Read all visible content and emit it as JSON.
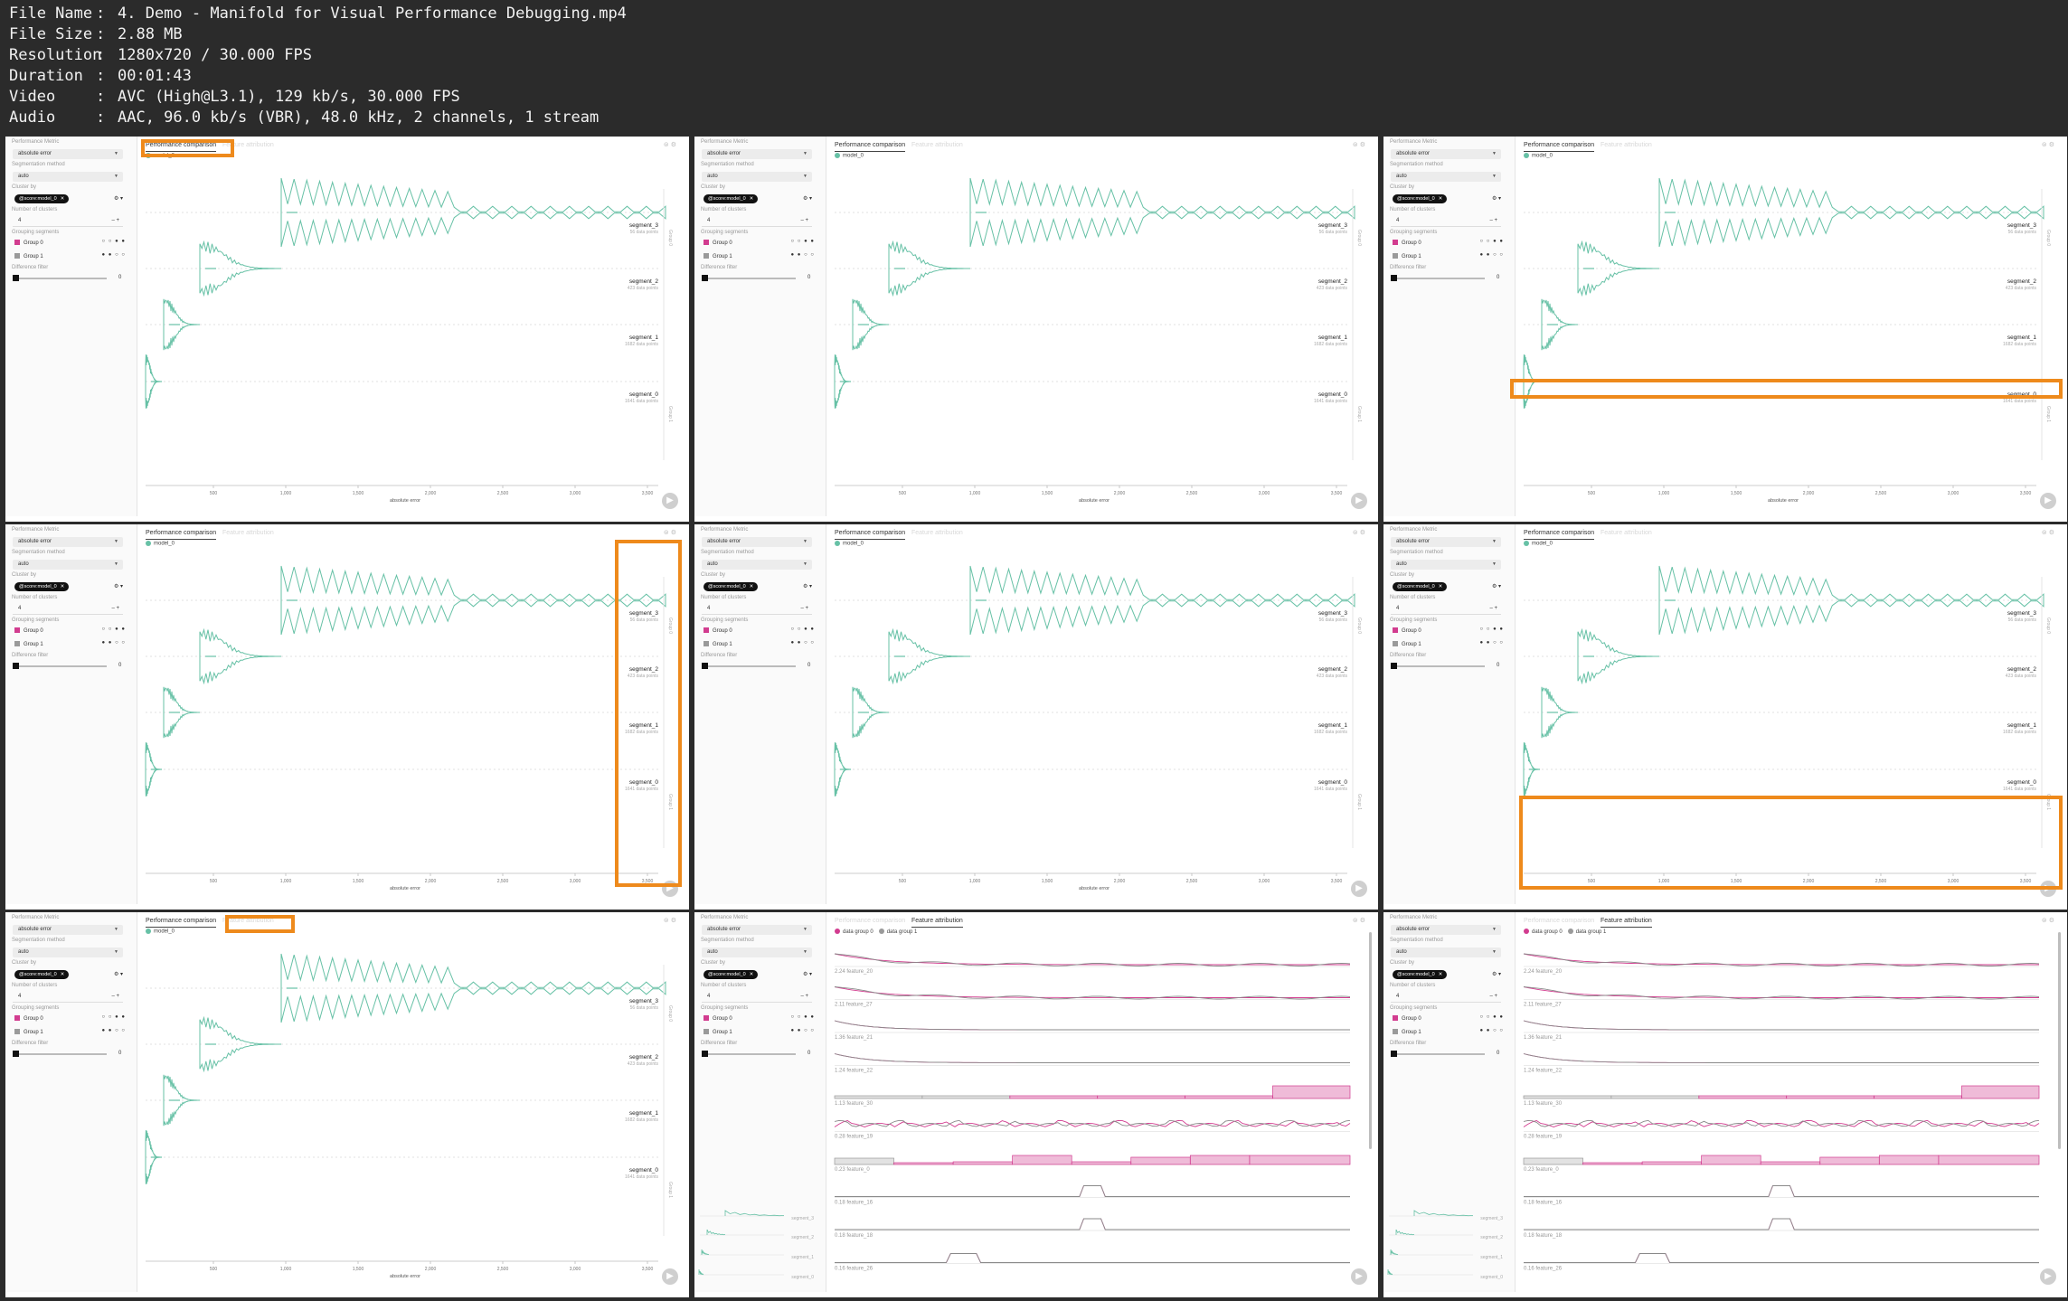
{
  "header": {
    "rows": [
      {
        "key": "File Name",
        "sep": ":",
        "value": "4. Demo - Manifold for Visual Performance Debugging.mp4"
      },
      {
        "key": "File Size",
        "sep": ":",
        "value": "2.88 MB"
      },
      {
        "key": "Resolution",
        "sep": ":",
        "value": "1280x720 / 30.000 FPS"
      },
      {
        "key": "Duration",
        "sep": ":",
        "value": "00:01:43"
      },
      {
        "key": "Video",
        "sep": ":",
        "value": "AVC (High@L3.1), 129 kb/s, 30.000 FPS"
      },
      {
        "key": "Audio",
        "sep": ":",
        "value": "AAC, 96.0 kb/s (VBR), 48.0 kHz, 2 channels, 1 stream"
      }
    ]
  },
  "sidebar": {
    "performance_metric_label": "Performance Metric",
    "performance_metric_value": "absolute error",
    "segmentation_method_label": "Segmentation method",
    "segmentation_method_value": "auto",
    "cluster_by_label": "Cluster by",
    "cluster_by_chip": "@score:model_0",
    "num_clusters_label": "Number of clusters",
    "num_clusters_value": "4",
    "grouping_segments_label": "Grouping segments",
    "group0_label": "Group 0",
    "group1_label": "Group 1",
    "difference_filter_label": "Difference filter",
    "difference_filter_value": "0"
  },
  "tabs": {
    "performance": "Performance comparison",
    "feature": "Feature attribution"
  },
  "perf_view": {
    "legend": "model_0",
    "segments": [
      {
        "name": "segment_3",
        "sub": "56 data points"
      },
      {
        "name": "segment_2",
        "sub": "423 data points"
      },
      {
        "name": "segment_1",
        "sub": "1682 data points"
      },
      {
        "name": "segment_0",
        "sub": "1641 data points"
      }
    ],
    "x_ticks": [
      "500",
      "1,000",
      "1,500",
      "2,000",
      "2,500",
      "3,000",
      "3,500"
    ],
    "x_label": "absolute error",
    "group_marks": [
      "Group 0",
      "Group 1"
    ]
  },
  "feature_view": {
    "legend": [
      "data group 0",
      "data group 1"
    ],
    "features": [
      "2.24 feature_20",
      "2.11 feature_27",
      "1.36 feature_21",
      "1.24 feature_22",
      "1.13 feature_30",
      "0.28 feature_19",
      "0.23 feature_0",
      "0.18 feature_16",
      "0.18 feature_18",
      "0.16 feature_26"
    ]
  },
  "colors": {
    "model": "#67c1a6",
    "group0": "#d23c8f",
    "group1": "#9a9a9a",
    "highlight": "#ee8a1c",
    "header_bg": "#2b2b2b",
    "header_text": "#f1f1f1"
  }
}
